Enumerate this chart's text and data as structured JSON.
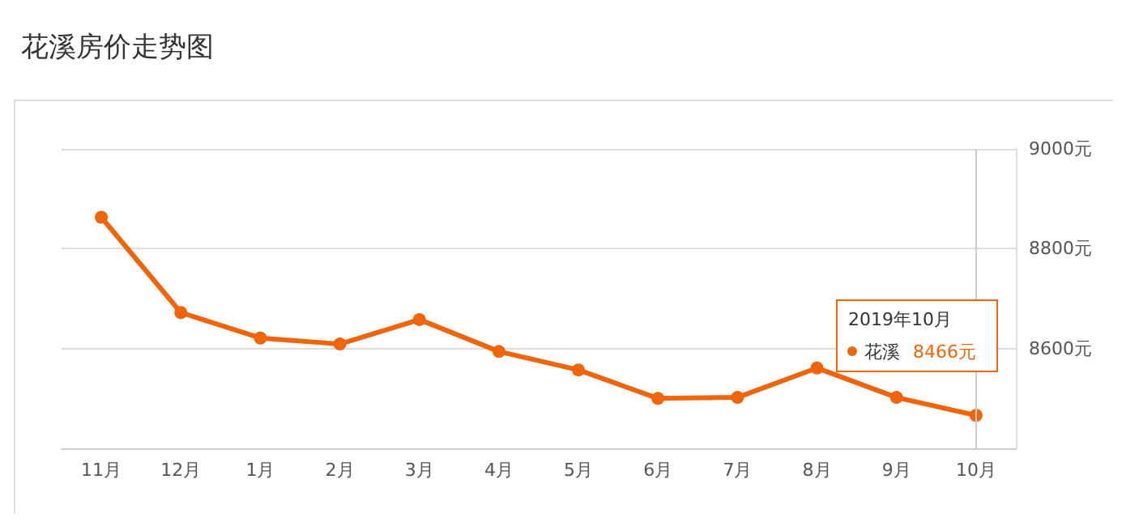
{
  "chart_data": {
    "type": "line",
    "title": "花溪房价走势图",
    "categories": [
      "11月",
      "12月",
      "1月",
      "2月",
      "3月",
      "4月",
      "5月",
      "6月",
      "7月",
      "8月",
      "9月",
      "10月"
    ],
    "series": [
      {
        "name": "花溪",
        "color": "#f0650a",
        "values": [
          8863,
          8672,
          8621,
          8609,
          8658,
          8594,
          8557,
          8500,
          8502,
          8561,
          8502,
          8466
        ],
        "value_labels": [
          null,
          null,
          null,
          null,
          null,
          null,
          null,
          null,
          null,
          null,
          null,
          "8466元"
        ]
      }
    ],
    "annotations": [
      "2019年10月"
    ],
    "ref_lines": [
      {
        "axis": "x",
        "value": "10月",
        "color": "#cccccc"
      }
    ],
    "ylim": [
      8400,
      9000
    ],
    "yticks": [
      {
        "value": 8400,
        "label": null
      },
      {
        "value": 8600,
        "label": "8600元"
      },
      {
        "value": 8800,
        "label": "8800元"
      },
      {
        "value": 9000,
        "label": "9000元"
      }
    ],
    "grid": "y",
    "legend": "right",
    "marker": "circle",
    "line_style": "solid"
  }
}
